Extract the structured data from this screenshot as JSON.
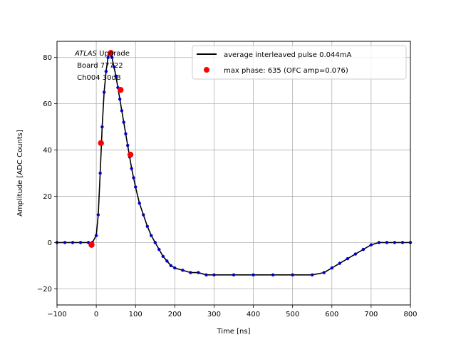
{
  "chart_data": {
    "type": "line",
    "title": "",
    "xlabel": "Time [ns]",
    "ylabel": "Amplitude [ADC Counts]",
    "xlim": [
      -100,
      800
    ],
    "ylim": [
      -27,
      87
    ],
    "xticks": [
      -100,
      0,
      100,
      200,
      300,
      400,
      500,
      600,
      700,
      800
    ],
    "yticks": [
      -20,
      0,
      20,
      40,
      60,
      80
    ],
    "grid": true,
    "legend_position": "top-right",
    "annotation": {
      "italic": "ATLAS",
      "lines": [
        " Upgrade",
        " Board 77722",
        " Ch004 30dB"
      ]
    },
    "series": [
      {
        "name": "average interleaved pulse 0.044mA",
        "style": "line+markers",
        "line_color": "#000000",
        "marker_color": "#0000cc",
        "x": [
          -100,
          -80,
          -60,
          -40,
          -20,
          -10,
          0,
          5,
          10,
          15,
          20,
          25,
          30,
          35,
          40,
          45,
          50,
          55,
          60,
          65,
          70,
          75,
          80,
          85,
          90,
          95,
          100,
          110,
          120,
          130,
          140,
          150,
          160,
          170,
          180,
          190,
          200,
          220,
          240,
          260,
          280,
          300,
          350,
          400,
          450,
          500,
          550,
          580,
          600,
          620,
          640,
          660,
          680,
          700,
          720,
          740,
          760,
          780,
          800
        ],
        "y": [
          0,
          0,
          0,
          0,
          0,
          0,
          3,
          12,
          30,
          50,
          65,
          74,
          80,
          82,
          80,
          76,
          72,
          67,
          62,
          57,
          52,
          47,
          42,
          37,
          32,
          28,
          24,
          17,
          12,
          7,
          3,
          0,
          -3,
          -6,
          -8,
          -10,
          -11,
          -12,
          -13,
          -13,
          -14,
          -14,
          -14,
          -14,
          -14,
          -14,
          -14,
          -13,
          -11,
          -9,
          -7,
          -5,
          -3,
          -1,
          0,
          0,
          0,
          0,
          0
        ]
      },
      {
        "name": "max phase: 635 (OFC amp=0.076)",
        "style": "markers",
        "marker_color": "#ff0000",
        "x": [
          -12,
          12,
          37,
          62,
          87
        ],
        "y": [
          -1,
          43,
          82,
          66,
          38
        ]
      }
    ]
  }
}
